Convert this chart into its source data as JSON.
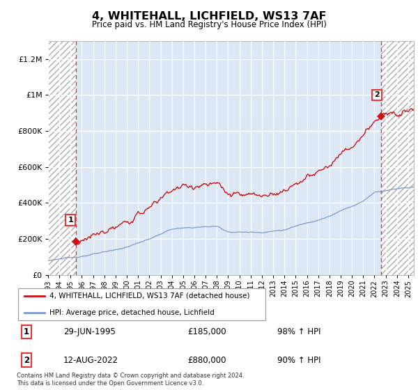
{
  "title": "4, WHITEHALL, LICHFIELD, WS13 7AF",
  "subtitle": "Price paid vs. HM Land Registry's House Price Index (HPI)",
  "hpi_label": "HPI: Average price, detached house, Lichfield",
  "property_label": "4, WHITEHALL, LICHFIELD, WS13 7AF (detached house)",
  "annotation1": {
    "num": "1",
    "date": "29-JUN-1995",
    "price": "£185,000",
    "pct": "98% ↑ HPI"
  },
  "annotation2": {
    "num": "2",
    "date": "12-AUG-2022",
    "price": "£880,000",
    "pct": "90% ↑ HPI"
  },
  "footnote": "Contains HM Land Registry data © Crown copyright and database right 2024.\nThis data is licensed under the Open Government Licence v3.0.",
  "sale1_date": 1995.49,
  "sale1_price": 185000,
  "sale2_date": 2022.62,
  "sale2_price": 880000,
  "hpi_color": "#7799cc",
  "property_color": "#cc1111",
  "dashed_color": "#ee3333",
  "background_light": "#dde8f5",
  "ylim": [
    0,
    1300000
  ],
  "yticks": [
    0,
    200000,
    400000,
    600000,
    800000,
    1000000,
    1200000
  ],
  "xlim_start": 1993.0,
  "xlim_end": 2025.5
}
